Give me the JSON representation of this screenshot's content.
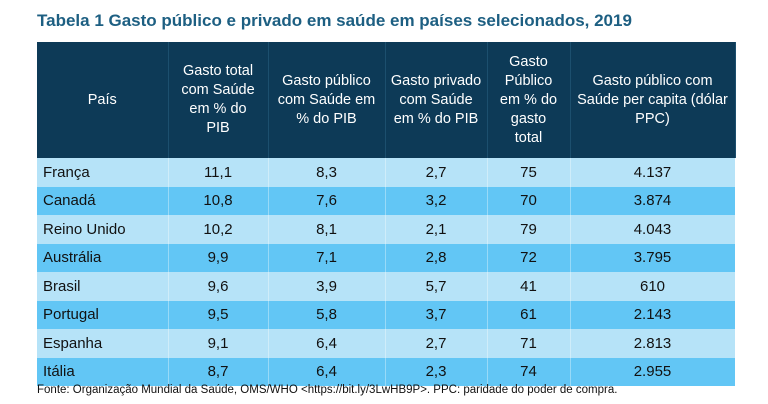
{
  "title": "Tabela 1 Gasto público e privado em saúde em países selecionados, 2019",
  "table": {
    "headers": [
      "País",
      "Gasto total com Saúde em % do PIB",
      "Gasto público com Saúde em % do PIB",
      "Gasto privado com Saúde em % do PIB",
      "Gasto Público em % do gasto total",
      "Gasto público com Saúde per capita (dólar PPC)"
    ],
    "rows": [
      [
        "França",
        "11,1",
        "8,3",
        "2,7",
        "75",
        "4.137"
      ],
      [
        "Canadá",
        "10,8",
        "7,6",
        "3,2",
        "70",
        "3.874"
      ],
      [
        "Reino Unido",
        "10,2",
        "8,1",
        "2,1",
        "79",
        "4.043"
      ],
      [
        "Austrália",
        "9,9",
        "7,1",
        "2,8",
        "72",
        "3.795"
      ],
      [
        "Brasil",
        "9,6",
        "3,9",
        "5,7",
        "41",
        "610"
      ],
      [
        "Portugal",
        "9,5",
        "5,8",
        "3,7",
        "61",
        "2.143"
      ],
      [
        "Espanha",
        "9,1",
        "6,4",
        "2,7",
        "71",
        "2.813"
      ],
      [
        "Itália",
        "8,7",
        "6,4",
        "2,3",
        "74",
        "2.955"
      ]
    ]
  },
  "source": "Fonte: Organização Mundial da Saúde, OMS/WHO <https://bit.ly/3LwHB9P>. PPC: paridade do poder de compra.",
  "colors": {
    "header": "#0d3a57",
    "row_light": "#b6e3f8",
    "row_dark": "#62c6f5",
    "title": "#1d5f82"
  }
}
